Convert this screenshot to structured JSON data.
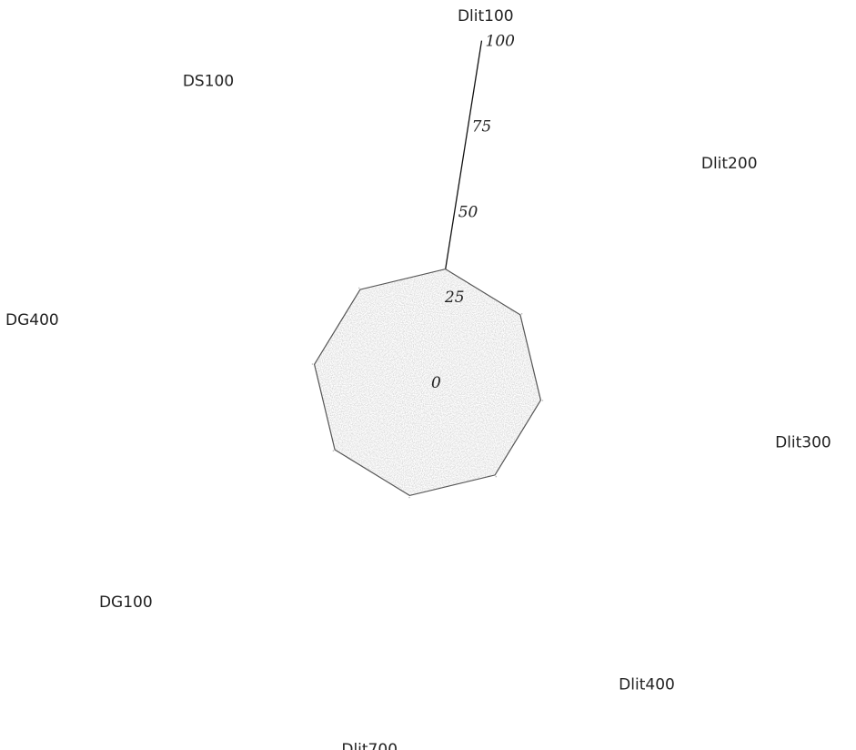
{
  "chart_data": {
    "type": "radar",
    "categories": [
      "Dlit100",
      "Dlit200",
      "Dlit300",
      "Dlit400",
      "Dlit700",
      "DG100",
      "DG400",
      "DS100"
    ],
    "series": [
      {
        "values": [
          30,
          30,
          30,
          30,
          30,
          30,
          30,
          30
        ],
        "color": "#c9c9c9"
      }
    ],
    "rlim": [
      0,
      100
    ],
    "ticks": [
      0,
      25,
      50,
      75,
      100
    ],
    "tick_labels": [
      "0",
      "25",
      "50",
      "75",
      "100"
    ],
    "grid": false,
    "legend": "none"
  }
}
